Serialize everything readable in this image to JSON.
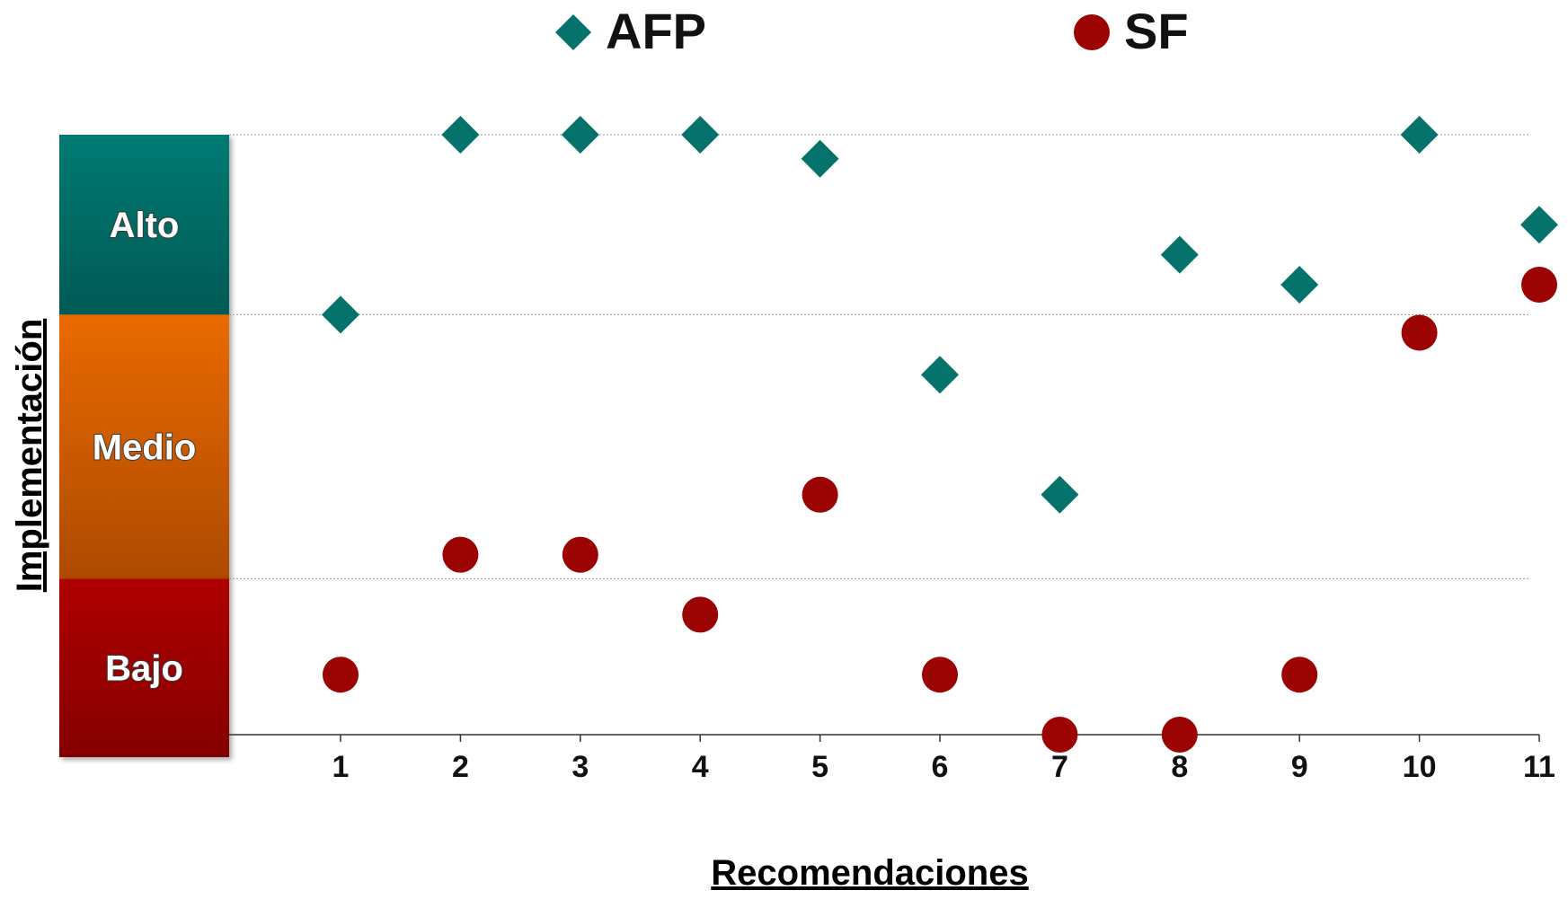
{
  "chart_data": {
    "type": "scatter",
    "title": "",
    "xlabel": "Recomendaciones",
    "ylabel": "Implementación",
    "categories": [
      "1",
      "2",
      "3",
      "4",
      "5",
      "6",
      "7",
      "8",
      "9",
      "10",
      "11"
    ],
    "xlim": [
      0.1,
      11
    ],
    "ylim": [
      0,
      10
    ],
    "grid": true,
    "legend_position": "top",
    "bands": [
      {
        "label": "Alto",
        "from": 7,
        "to": 10,
        "color_top": "#067a73",
        "color_bottom": "#045a55"
      },
      {
        "label": "Medio",
        "from": 2.6,
        "to": 7,
        "color_top": "#ea6a06",
        "color_bottom": "#ad4a06"
      },
      {
        "label": "Bajo",
        "from": 0,
        "to": 2.6,
        "color_top": "#b00303",
        "color_bottom": "#840101"
      }
    ],
    "gridlines_y": [
      2.6,
      7,
      10
    ],
    "series": [
      {
        "name": "AFP",
        "marker": "diamond",
        "color": "#05726b",
        "points": [
          [
            1,
            7
          ],
          [
            2,
            10
          ],
          [
            3,
            10
          ],
          [
            4,
            10
          ],
          [
            5,
            9.6
          ],
          [
            6,
            6
          ],
          [
            7,
            4
          ],
          [
            8,
            8
          ],
          [
            9,
            7.5
          ],
          [
            10,
            10
          ],
          [
            11,
            8.5
          ]
        ]
      },
      {
        "name": "SF",
        "marker": "circle",
        "color": "#9c0303",
        "points": [
          [
            1,
            1
          ],
          [
            2,
            3
          ],
          [
            3,
            3
          ],
          [
            4,
            2
          ],
          [
            5,
            4
          ],
          [
            6,
            1
          ],
          [
            7,
            0
          ],
          [
            8,
            0
          ],
          [
            9,
            1
          ],
          [
            10,
            6.7
          ],
          [
            11,
            7.5
          ]
        ]
      }
    ]
  }
}
